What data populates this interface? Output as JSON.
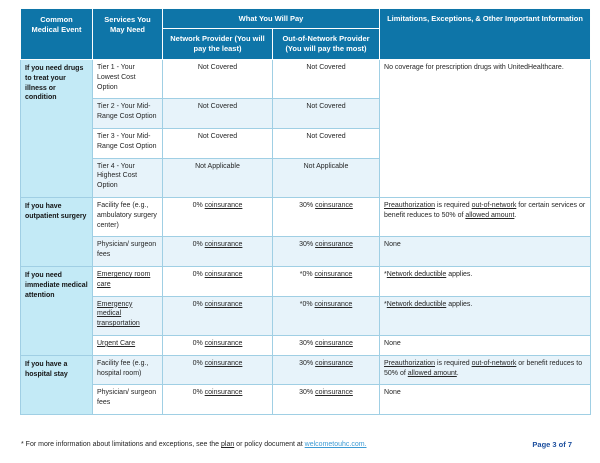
{
  "colors": {
    "header_bg": "#0e75a8",
    "event_bg": "#c3eaf6",
    "stripe_bg": "#e7f3fa",
    "border": "#a0cfe4",
    "link_blue": "#3d9bd4",
    "page_number_blue": "#1d4f9e"
  },
  "table": {
    "header": {
      "col_event": "Common Medical Event",
      "col_services": "Services You May Need",
      "col_pay": "What You Will Pay",
      "col_network": "Network Provider (You will pay the least)",
      "col_oon": "Out-of-Network Provider (You will pay the most)",
      "col_limits": "Limitations, Exceptions, & Other Important Information"
    },
    "groups": [
      {
        "event": "If you need drugs to treat your illness or condition",
        "limitation": [
          {
            "t": "No coverage for prescription drugs with UnitedHealthcare."
          }
        ],
        "rows": [
          {
            "service": [
              {
                "t": "Tier 1 - Your Lowest Cost Option"
              }
            ],
            "network": [
              {
                "t": "Not Covered"
              }
            ],
            "oon": [
              {
                "t": "Not Covered"
              }
            ]
          },
          {
            "service": [
              {
                "t": "Tier 2 - Your Mid-Range Cost Option"
              }
            ],
            "network": [
              {
                "t": "Not Covered"
              }
            ],
            "oon": [
              {
                "t": "Not Covered"
              }
            ]
          },
          {
            "service": [
              {
                "t": "Tier 3 - Your Mid-Range Cost Option"
              }
            ],
            "network": [
              {
                "t": "Not Covered"
              }
            ],
            "oon": [
              {
                "t": "Not Covered"
              }
            ]
          },
          {
            "service": [
              {
                "t": "Tier 4 - Your Highest Cost Option"
              }
            ],
            "network": [
              {
                "t": "Not Applicable"
              }
            ],
            "oon": [
              {
                "t": "Not Applicable"
              }
            ]
          }
        ]
      },
      {
        "event": "If you have outpatient surgery",
        "rows": [
          {
            "service": [
              {
                "t": "Facility fee (e.g., ambulatory surgery center)"
              }
            ],
            "network": [
              {
                "t": "0% "
              },
              {
                "t": "coinsurance",
                "u": true
              }
            ],
            "oon": [
              {
                "t": "30% "
              },
              {
                "t": "coinsurance",
                "u": true
              }
            ],
            "lim": [
              {
                "t": "Preauthorization",
                "u": true
              },
              {
                "t": " is required "
              },
              {
                "t": "out-of-network",
                "u": true
              },
              {
                "t": " for certain services or benefit reduces to 50% of "
              },
              {
                "t": "allowed amount",
                "u": true
              },
              {
                "t": "."
              }
            ]
          },
          {
            "service": [
              {
                "t": "Physician/ surgeon fees"
              }
            ],
            "network": [
              {
                "t": "0% "
              },
              {
                "t": "coinsurance",
                "u": true
              }
            ],
            "oon": [
              {
                "t": "30% "
              },
              {
                "t": "coinsurance",
                "u": true
              }
            ],
            "lim": [
              {
                "t": "None"
              }
            ]
          }
        ]
      },
      {
        "event": "If you need immediate medical attention",
        "rows": [
          {
            "service": [
              {
                "t": "Emergency room care",
                "u": true
              }
            ],
            "network": [
              {
                "t": "0% "
              },
              {
                "t": "coinsurance",
                "u": true
              }
            ],
            "oon": [
              {
                "t": "*0% "
              },
              {
                "t": "coinsurance",
                "u": true
              }
            ],
            "lim": [
              {
                "t": "*"
              },
              {
                "t": "Network deductible",
                "u": true
              },
              {
                "t": " applies."
              }
            ]
          },
          {
            "service": [
              {
                "t": "Emergency medical transportation",
                "u": true
              }
            ],
            "network": [
              {
                "t": "0% "
              },
              {
                "t": "coinsurance",
                "u": true
              }
            ],
            "oon": [
              {
                "t": "*0% "
              },
              {
                "t": "coinsurance",
                "u": true
              }
            ],
            "lim": [
              {
                "t": "*"
              },
              {
                "t": "Network deductible",
                "u": true
              },
              {
                "t": " applies."
              }
            ]
          },
          {
            "service": [
              {
                "t": "Urgent Care",
                "u": true
              }
            ],
            "network": [
              {
                "t": "0% "
              },
              {
                "t": "coinsurance",
                "u": true
              }
            ],
            "oon": [
              {
                "t": "30% "
              },
              {
                "t": "coinsurance",
                "u": true
              }
            ],
            "lim": [
              {
                "t": "None"
              }
            ]
          }
        ]
      },
      {
        "event": "If you have a hospital stay",
        "rows": [
          {
            "service": [
              {
                "t": "Facility fee (e.g., hospital room)"
              }
            ],
            "network": [
              {
                "t": "0% "
              },
              {
                "t": "coinsurance",
                "u": true
              }
            ],
            "oon": [
              {
                "t": "30% "
              },
              {
                "t": "coinsurance",
                "u": true
              }
            ],
            "lim": [
              {
                "t": "Preauthorization",
                "u": true
              },
              {
                "t": " is required "
              },
              {
                "t": "out-of-network",
                "u": true
              },
              {
                "t": " or benefit reduces to 50% of "
              },
              {
                "t": "allowed amount",
                "u": true
              },
              {
                "t": "."
              }
            ]
          },
          {
            "service": [
              {
                "t": "Physician/ surgeon fees"
              }
            ],
            "network": [
              {
                "t": "0% "
              },
              {
                "t": "coinsurance",
                "u": true
              }
            ],
            "oon": [
              {
                "t": "30% "
              },
              {
                "t": "coinsurance",
                "u": true
              }
            ],
            "lim": [
              {
                "t": "None"
              }
            ]
          }
        ]
      }
    ]
  },
  "footer": {
    "note": [
      {
        "t": "* For more information about limitations and exceptions, see the "
      },
      {
        "t": "plan",
        "u": true
      },
      {
        "t": " or policy document at "
      },
      {
        "t": "welcometouhc.com.",
        "u": true,
        "link": true
      }
    ],
    "page_label": "Page 3 of 7"
  }
}
